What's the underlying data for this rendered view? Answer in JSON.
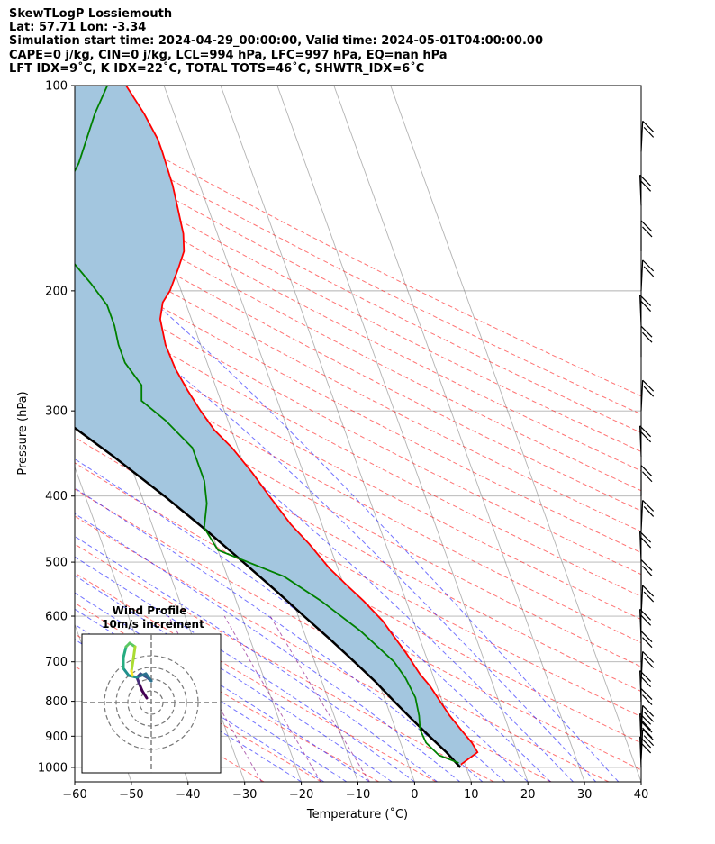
{
  "header": {
    "line1": "SkewTLogP Lossiemouth",
    "line2": "Lat: 57.71   Lon: -3.34",
    "line3": "Simulation start time: 2024-04-29_00:00:00, Valid time: 2024-05-01T04:00:00.00",
    "line4": "CAPE=0 j/kg, CIN=0 j/kg, LCL=994 hPa, LFC=997 hPa, EQ=nan hPa",
    "line5": "LFT IDX=9˚C, K IDX=22˚C, TOTAL TOTS=46˚C, SHWTR_IDX=6˚C"
  },
  "chart_data": {
    "type": "line",
    "subtype": "skew-T log-P diagram",
    "xlabel": "Temperature (˚C)",
    "ylabel": "Pressure (hPa)",
    "xlim": [
      -60,
      40
    ],
    "ylim_hPa": [
      1050,
      100
    ],
    "x_ticks": [
      "−60",
      "−50",
      "−40",
      "−30",
      "−20",
      "−10",
      "0",
      "10",
      "20",
      "30",
      "40"
    ],
    "y_ticks": [
      "100",
      "200",
      "300",
      "400",
      "500",
      "600",
      "700",
      "800",
      "900",
      "1000"
    ],
    "log_pressure_axis": true,
    "grid": true,
    "colors": {
      "temperature": "#ff0000",
      "dewpoint": "#008000",
      "parcel": "#000000",
      "shading": "#a3c6df",
      "dry_adiabats": "#ff0000",
      "moist_adiabats": "#0000ff",
      "mixing_ratio": "#800080",
      "isotherms": "#808080"
    },
    "series": [
      {
        "role": "temperature",
        "points": [
          [
            9.3,
            990
          ],
          [
            13,
            950
          ],
          [
            12.6,
            920
          ],
          [
            11.5,
            880
          ],
          [
            10.4,
            840
          ],
          [
            8.8,
            760
          ],
          [
            7.8,
            730
          ],
          [
            6.7,
            680
          ],
          [
            5.5,
            640
          ],
          [
            4.6,
            610
          ],
          [
            2.5,
            570
          ],
          [
            0.5,
            540
          ],
          [
            -1.5,
            510
          ],
          [
            -3.5,
            470
          ],
          [
            -5.5,
            440
          ],
          [
            -7.5,
            400
          ],
          [
            -9,
            370
          ],
          [
            -11,
            340
          ],
          [
            -13,
            320
          ],
          [
            -14.2,
            300
          ],
          [
            -15.2,
            280
          ],
          [
            -16,
            260
          ],
          [
            -16.2,
            240
          ],
          [
            -15.5,
            220
          ],
          [
            -14,
            208
          ],
          [
            -12,
            200
          ],
          [
            -9,
            185
          ],
          [
            -7,
            175
          ],
          [
            -6,
            165
          ],
          [
            -5.3,
            150
          ],
          [
            -4.8,
            140
          ],
          [
            -4.5,
            125
          ],
          [
            -4.5,
            120
          ],
          [
            -5.3,
            110
          ],
          [
            -6.7,
            100
          ]
        ]
      },
      {
        "role": "dewpoint",
        "points": [
          [
            9,
            985
          ],
          [
            6,
            960
          ],
          [
            4.5,
            920
          ],
          [
            4.3,
            880
          ],
          [
            5,
            840
          ],
          [
            5.5,
            790
          ],
          [
            5,
            740
          ],
          [
            4,
            700
          ],
          [
            0,
            630
          ],
          [
            -5,
            570
          ],
          [
            -10,
            525
          ],
          [
            -20,
            480
          ],
          [
            -21,
            445
          ],
          [
            -19,
            410
          ],
          [
            -18,
            380
          ],
          [
            -18,
            340
          ],
          [
            -21,
            310
          ],
          [
            -24,
            290
          ],
          [
            -23,
            275
          ],
          [
            -24.5,
            255
          ],
          [
            -24.5,
            240
          ],
          [
            -24,
            225
          ],
          [
            -24,
            210
          ],
          [
            -25.5,
            195
          ],
          [
            -27.5,
            180
          ],
          [
            -29.5,
            170
          ],
          [
            -29,
            160
          ],
          [
            -25,
            145
          ],
          [
            -20,
            130
          ],
          [
            -14,
            110
          ],
          [
            -10,
            100
          ]
        ]
      },
      {
        "role": "parcel",
        "points": [
          [
            9,
            1000
          ],
          [
            7.5,
            950
          ],
          [
            5.5,
            900
          ],
          [
            3.5,
            850
          ],
          [
            1.5,
            800
          ],
          [
            -0.5,
            750
          ],
          [
            -3,
            700
          ],
          [
            -5.8,
            650
          ],
          [
            -9,
            600
          ],
          [
            -12.4,
            550
          ],
          [
            -16.3,
            500
          ],
          [
            -20.7,
            450
          ],
          [
            -26,
            400
          ],
          [
            -32.5,
            350
          ],
          [
            -40.5,
            300
          ],
          [
            -51,
            250
          ],
          [
            -65,
            200
          ],
          [
            -85,
            150
          ],
          [
            -113,
            100
          ]
        ]
      }
    ],
    "wind_barbs_hPa": [
      1000,
      975,
      950,
      925,
      900,
      850,
      800,
      750,
      700,
      650,
      600,
      550,
      500,
      450,
      400,
      350,
      300,
      250,
      225,
      200,
      175,
      150,
      125
    ],
    "hodograph": {
      "title": "Wind Profile",
      "subtitle": "10m/s increment"
    }
  }
}
